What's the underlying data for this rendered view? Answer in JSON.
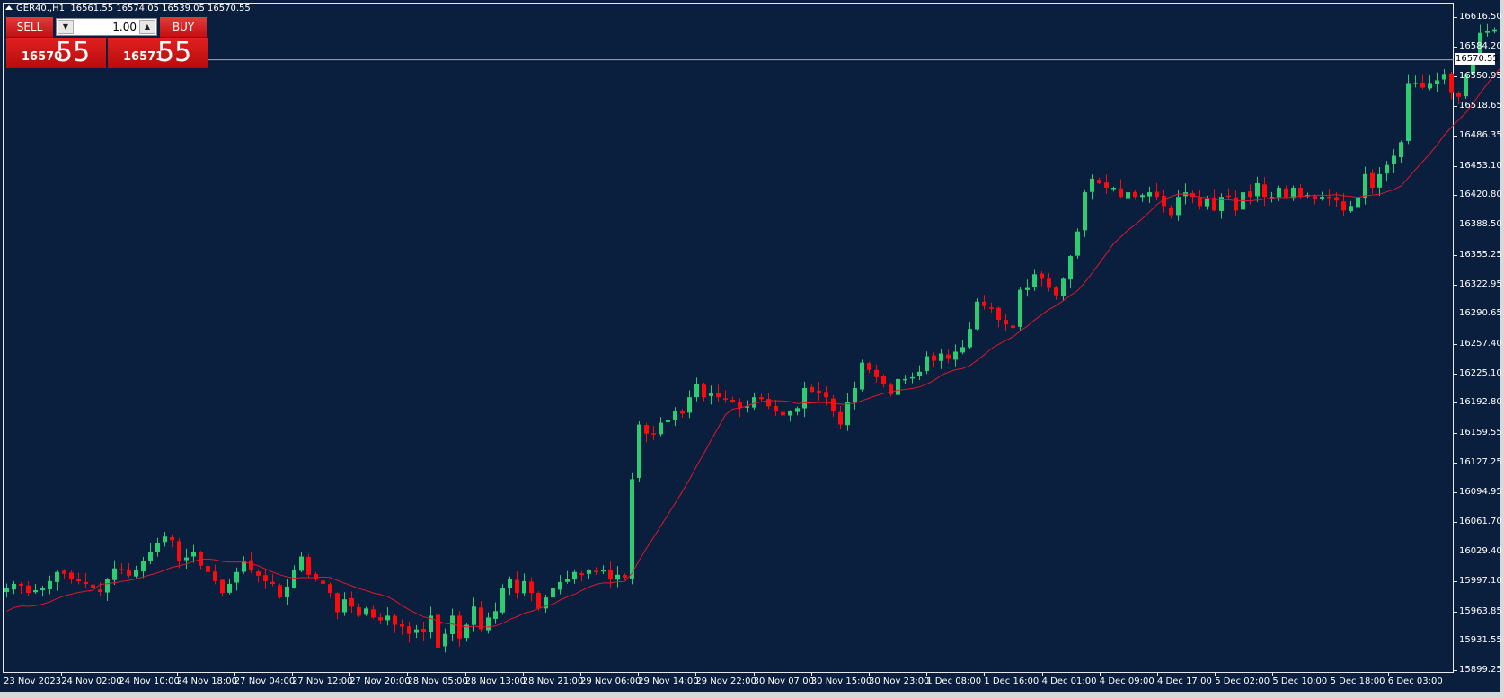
{
  "header": {
    "symbol": "GER40.,H1",
    "ohlc": "16561.55 16574.05 16539.05 16570.55"
  },
  "trade_panel": {
    "sell_label": "SELL",
    "buy_label": "BUY",
    "lot_value": "1.00",
    "sell_price_small": "16570",
    "sell_price_big": "55",
    "buy_price_small": "16571",
    "buy_price_big": "55"
  },
  "current_price_label": "16570.55",
  "colors": {
    "background": "#0a1e3d",
    "bull": "#2ecc71",
    "bear": "#ff0a0a",
    "ma_line": "#e0182d",
    "bid_line": "#a0aab8"
  },
  "chart_data": {
    "type": "candlestick",
    "title": "GER40.,H1",
    "xlabel": "",
    "ylabel": "",
    "ylim": [
      15899.25,
      16616.5
    ],
    "grid": false,
    "y_ticks": [
      "16616.50",
      "16584.20",
      "16550.95",
      "16518.65",
      "16486.35",
      "16453.10",
      "16420.80",
      "16388.50",
      "16355.25",
      "16322.95",
      "16290.65",
      "16257.40",
      "16225.10",
      "16192.80",
      "16159.55",
      "16127.25",
      "16094.95",
      "16061.70",
      "16029.40",
      "15997.10",
      "15963.85",
      "15931.55",
      "15899.25"
    ],
    "x_ticks": [
      "23 Nov 2023",
      "24 Nov 02:00",
      "24 Nov 10:00",
      "24 Nov 18:00",
      "27 Nov 04:00",
      "27 Nov 12:00",
      "27 Nov 20:00",
      "28 Nov 05:00",
      "28 Nov 13:00",
      "28 Nov 21:00",
      "29 Nov 06:00",
      "29 Nov 14:00",
      "29 Nov 22:00",
      "30 Nov 07:00",
      "30 Nov 15:00",
      "30 Nov 23:00",
      "1 Dec 08:00",
      "1 Dec 16:00",
      "4 Dec 01:00",
      "4 Dec 09:00",
      "4 Dec 17:00",
      "5 Dec 02:00",
      "5 Dec 10:00",
      "5 Dec 18:00",
      "6 Dec 03:00"
    ],
    "last_price": 16570.55,
    "indicator": "Moving Average (red line)",
    "closes": [
      15990,
      15995,
      15993,
      15985,
      15988,
      15990,
      15998,
      16008,
      16006,
      16000,
      15998,
      15995,
      15990,
      15986,
      16000,
      16012,
      16010,
      16004,
      16010,
      16020,
      16030,
      16040,
      16047,
      16043,
      16020,
      16024,
      16030,
      16015,
      16008,
      15998,
      15985,
      15995,
      16008,
      16020,
      16010,
      16004,
      15998,
      15995,
      15980,
      15992,
      16010,
      16025,
      16005,
      16000,
      15995,
      15985,
      15964,
      15978,
      15970,
      15960,
      15968,
      15958,
      15955,
      15960,
      15950,
      15948,
      15940,
      15945,
      15942,
      15960,
      15925,
      15940,
      15960,
      15935,
      15950,
      15970,
      15945,
      15958,
      15965,
      15990,
      16000,
      15985,
      15998,
      15985,
      15968,
      15980,
      15990,
      15997,
      16000,
      16008,
      16005,
      16010,
      16008,
      16010,
      16000,
      16005,
      16002,
      16110,
      16170,
      16160,
      16160,
      16172,
      16175,
      16185,
      16182,
      16200,
      16215,
      16200,
      16205,
      16200,
      16198,
      16195,
      16188,
      16190,
      16200,
      16198,
      16190,
      16185,
      16180,
      16185,
      16188,
      16210,
      16206,
      16205,
      16200,
      16185,
      16170,
      16195,
      16210,
      16238,
      16230,
      16222,
      16215,
      16203,
      16220,
      16220,
      16222,
      16228,
      16245,
      16240,
      16248,
      16242,
      16250,
      16255,
      16275,
      16305,
      16300,
      16298,
      16285,
      16280,
      16276,
      16318,
      16320,
      16335,
      16330,
      16320,
      16312,
      16330,
      16355,
      16382,
      16425,
      16440,
      16435,
      16430,
      16430,
      16420,
      16425,
      16420,
      16422,
      16425,
      16420,
      16410,
      16400,
      16420,
      16425,
      16420,
      16410,
      16418,
      16405,
      16420,
      16420,
      16405,
      16425,
      16420,
      16435,
      16420,
      16420,
      16430,
      16420,
      16430,
      16420,
      16422,
      16418,
      16420,
      16420,
      16416,
      16405,
      16410,
      16420,
      16445,
      16430,
      16445,
      16455,
      16465,
      16480,
      16545,
      16545,
      16540,
      16545,
      16548,
      16555,
      16535,
      16530,
      16555,
      16575,
      16600,
      16602,
      16604,
      16605,
      16603,
      16560,
      16556,
      16570
    ],
    "ma_values_note": "smooth lagging moving average"
  }
}
